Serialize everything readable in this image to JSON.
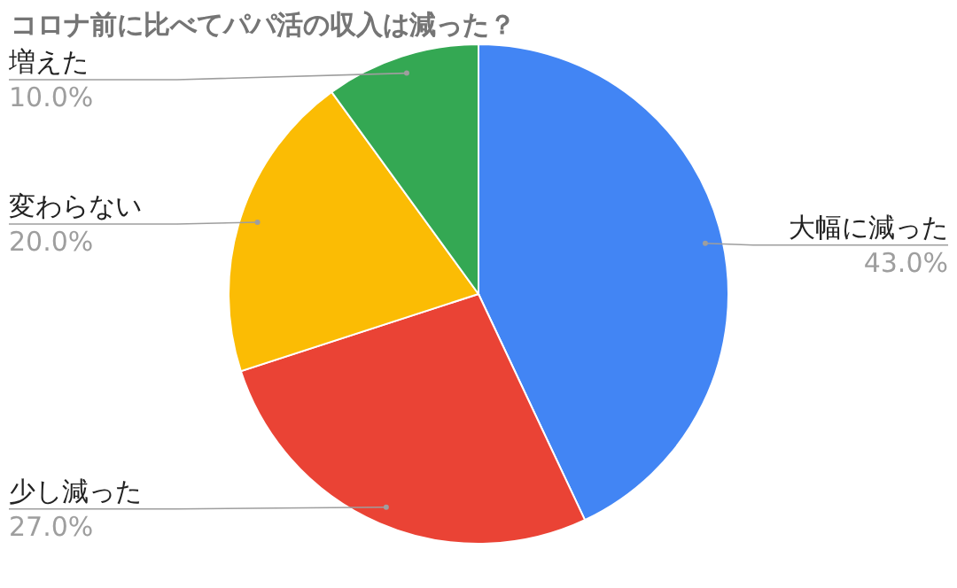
{
  "chart_data": {
    "type": "pie",
    "title": "コロナ前に比べてパパ活の収入は減った？",
    "categories": [
      "大幅に減った",
      "少し減った",
      "変わらない",
      "増えた"
    ],
    "values": [
      43.0,
      27.0,
      20.0,
      10.0
    ],
    "colors": [
      "#4285f4",
      "#ea4335",
      "#fbbc04",
      "#34a853"
    ],
    "value_labels": [
      "43.0%",
      "27.0%",
      "20.0%",
      "10.0%"
    ]
  }
}
